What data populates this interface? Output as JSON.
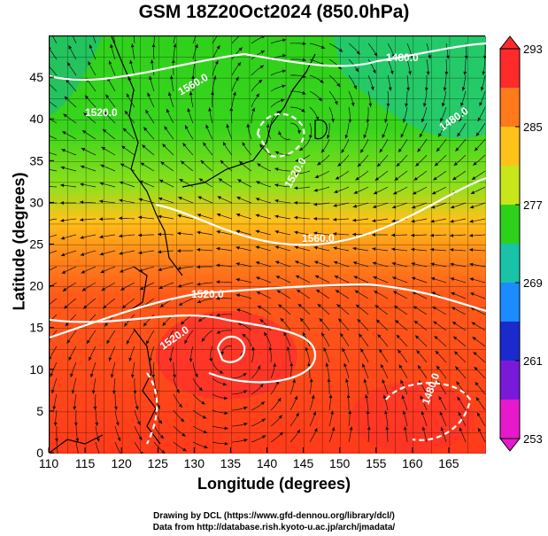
{
  "header": {
    "title": "GSM 18Z20Oct2024 (850.0hPa)"
  },
  "axes": {
    "xlabel": "Longitude (degrees)",
    "ylabel": "Latitude  (degrees)",
    "x_ticks": [
      "110",
      "115",
      "120",
      "125",
      "130",
      "135",
      "140",
      "145",
      "150",
      "155",
      "160",
      "165"
    ],
    "y_ticks": [
      "0",
      "5",
      "10",
      "15",
      "20",
      "25",
      "30",
      "35",
      "40",
      "45"
    ]
  },
  "colorbar": {
    "ticks": [
      "293",
      "285",
      "277",
      "269",
      "261",
      "253"
    ],
    "colors": [
      "#ff2a2a",
      "#ff7a1a",
      "#ffc21a",
      "#c8e61a",
      "#2ed11a",
      "#19c3a8",
      "#1a8cff",
      "#1a2acc",
      "#7a1ad9",
      "#e61acc"
    ]
  },
  "contours": [
    {
      "label": "1480.0"
    },
    {
      "label": "1520.0"
    },
    {
      "label": "1560.0"
    },
    {
      "label": "1520.0"
    },
    {
      "label": "1560.0"
    },
    {
      "label": "1520.0"
    },
    {
      "label": "1480.0"
    },
    {
      "label": "1480.0"
    },
    {
      "label": "1520.0"
    }
  ],
  "footer": {
    "line1": "Drawing by DCL (https://www.gfd-dennou.org/library/dcl/)",
    "line2": "Data from http://database.rish.kyoto-u.ac.jp/arch/jmadata/"
  }
}
